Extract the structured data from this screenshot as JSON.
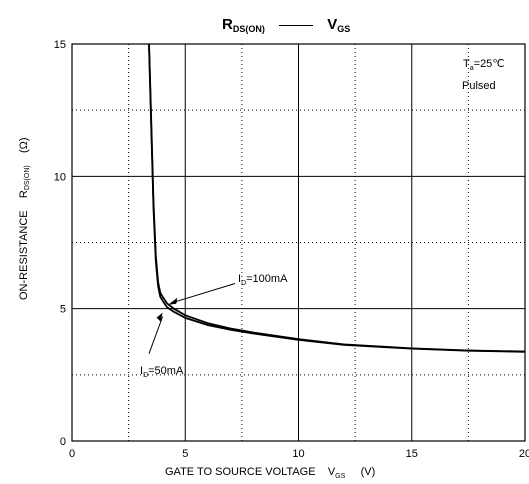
{
  "chart_data": {
    "type": "line",
    "title_parts": {
      "left_main": "R",
      "left_sub": "DS(ON)",
      "right_main": "V",
      "right_sub": "GS"
    },
    "xlabel": "GATE TO SOURCE VOLTAGE",
    "xvar": {
      "main": "V",
      "sub": "GS",
      "unit": "(V)"
    },
    "ylabel": "ON-RESISTANCE",
    "yvar": {
      "main": "R",
      "sub": "DS(ON)",
      "unit": "(Ω)"
    },
    "xlim": [
      0,
      20
    ],
    "ylim": [
      0,
      15
    ],
    "xticks": [
      0,
      5,
      10,
      15,
      20
    ],
    "yticks": [
      0,
      5,
      10,
      15
    ],
    "minor_grid_x": [
      2.5,
      7.5,
      12.5,
      17.5
    ],
    "minor_grid_y": [
      2.5,
      7.5,
      12.5
    ],
    "grid": true,
    "conditions": [
      "T",
      "a",
      "=25℃",
      "Pulsed"
    ],
    "series": [
      {
        "name": "ID=100mA",
        "x": [
          3.4,
          3.5,
          3.6,
          3.7,
          3.8,
          3.9,
          4.0,
          4.2,
          4.5,
          5.0,
          6.0,
          7.0,
          8.0,
          10.0,
          12.0,
          15.0,
          17.5,
          20.0
        ],
        "y": [
          15.0,
          12.0,
          9.0,
          7.0,
          6.0,
          5.6,
          5.45,
          5.2,
          5.0,
          4.75,
          4.45,
          4.25,
          4.1,
          3.85,
          3.65,
          3.5,
          3.42,
          3.38
        ]
      },
      {
        "name": "ID=50mA",
        "x": [
          3.4,
          3.5,
          3.6,
          3.7,
          3.8,
          3.9,
          4.0,
          4.2,
          4.5,
          5.0,
          6.0,
          7.0,
          8.0,
          10.0,
          12.0,
          15.0,
          17.5,
          20.0
        ],
        "y": [
          15.0,
          11.8,
          8.8,
          6.8,
          5.85,
          5.45,
          5.3,
          5.05,
          4.88,
          4.65,
          4.38,
          4.2,
          4.06,
          3.82,
          3.63,
          3.49,
          3.41,
          3.37
        ]
      }
    ],
    "annotations": [
      {
        "label_main": "I",
        "label_sub": "D",
        "label_rest": "=100mA"
      },
      {
        "label_main": "I",
        "label_sub": "D",
        "label_rest": "=50mA"
      }
    ]
  }
}
